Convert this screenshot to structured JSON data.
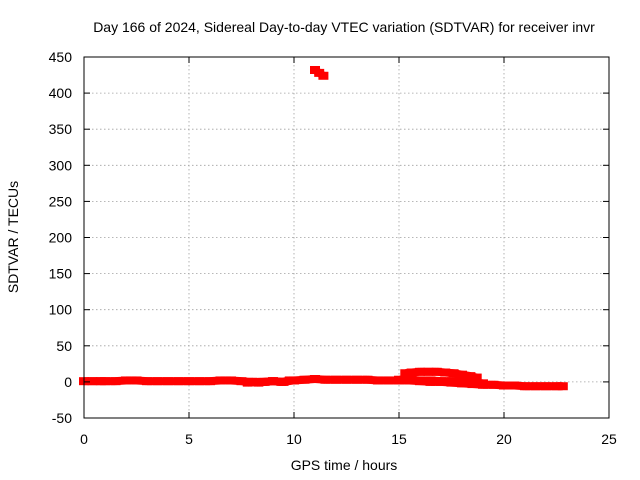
{
  "chart_data": {
    "type": "scatter",
    "title": "Day 166 of 2024, Sidereal Day-to-day VTEC variation (SDTVAR) for receiver invr",
    "xlabel": "GPS time / hours",
    "ylabel": "SDTVAR / TECUs",
    "xlim": [
      0,
      25
    ],
    "ylim": [
      -50,
      450
    ],
    "xticks": [
      0,
      5,
      10,
      15,
      20,
      25
    ],
    "yticks": [
      -50,
      0,
      50,
      100,
      150,
      200,
      250,
      300,
      350,
      400,
      450
    ],
    "grid": true,
    "legend": "none",
    "color": "#ff0000",
    "series": [
      {
        "x": [
          0.0,
          0.4,
          0.8,
          1.0,
          1.5,
          2.0,
          2.5,
          3.0,
          3.5,
          4.0,
          4.5,
          5.0,
          5.5,
          6.0,
          6.5,
          7.0,
          7.5,
          7.8,
          8.0,
          8.5,
          9.0,
          9.5,
          10.0,
          10.5,
          11.0,
          11.5,
          12.0,
          12.5,
          13.0,
          13.5,
          14.0,
          14.5,
          15.0,
          15.5,
          16.0,
          16.5,
          17.0,
          17.5,
          18.0,
          18.5,
          19.0,
          19.5,
          20.0,
          20.5,
          21.0,
          21.5,
          22.0,
          22.5,
          22.8
        ],
        "y": [
          1,
          1,
          1,
          1,
          1,
          2,
          2,
          1,
          1,
          1,
          1,
          1,
          1,
          1,
          2,
          2,
          1,
          0,
          0,
          0,
          1,
          0,
          2,
          3,
          4,
          3,
          3,
          3,
          3,
          3,
          2,
          2,
          2,
          2,
          1,
          0,
          0,
          -1,
          -2,
          -3,
          -4,
          -4,
          -5,
          -5,
          -6,
          -6,
          -6,
          -6,
          -6
        ]
      },
      {
        "x": [
          7.8,
          8.0,
          8.3,
          8.6,
          9.0,
          9.4,
          9.8
        ],
        "y": [
          -1,
          0,
          -1,
          0,
          1,
          0,
          2
        ]
      },
      {
        "x": [
          11.0,
          11.2,
          11.4
        ],
        "y": [
          432,
          428,
          424
        ]
      },
      {
        "x": [
          15.3,
          15.6,
          16.0,
          16.4,
          16.8,
          17.2,
          17.6,
          18.0,
          18.4,
          18.7
        ],
        "y": [
          12,
          13,
          14,
          14,
          14,
          13,
          12,
          10,
          8,
          6
        ]
      },
      {
        "x": [
          15.0,
          15.5,
          16.0,
          16.5,
          17.0,
          17.5,
          18.0,
          18.5,
          19.0
        ],
        "y": [
          3,
          3,
          2,
          2,
          1,
          1,
          0,
          -1,
          -2
        ]
      }
    ]
  }
}
